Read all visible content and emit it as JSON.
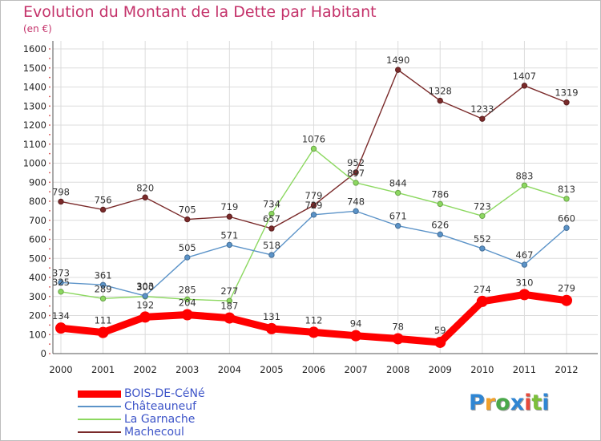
{
  "title": "Evolution du Montant de la Dette par Habitant",
  "subtitle": "(en €)",
  "logo": {
    "text": "Proxiti",
    "colors": [
      "#2f86d3",
      "#f2a12a",
      "#4aa84a",
      "#2f86d3",
      "#e64a3c",
      "#7bbf3a",
      "#2f86d3"
    ]
  },
  "chart_data": {
    "type": "line",
    "x": [
      "2000",
      "2001",
      "2002",
      "2003",
      "2004",
      "2005",
      "2006",
      "2007",
      "2008",
      "2009",
      "2010",
      "2011",
      "2012"
    ],
    "ylim": [
      0,
      1600
    ],
    "yticks": [
      0,
      100,
      200,
      300,
      400,
      500,
      600,
      700,
      800,
      900,
      1000,
      1100,
      1200,
      1300,
      1400,
      1500,
      1600
    ],
    "grid": true,
    "legend_position": "bottom-left",
    "series": [
      {
        "name": "BOIS-DE-CéNé",
        "color": "#ff0000",
        "values": [
          134,
          111,
          192,
          204,
          187,
          131,
          112,
          94,
          78,
          59,
          274,
          310,
          279
        ]
      },
      {
        "name": "Châteauneuf",
        "color": "#5b93c8",
        "values": [
          373,
          361,
          303,
          505,
          571,
          518,
          729,
          748,
          671,
          626,
          552,
          467,
          660
        ]
      },
      {
        "name": "La Garnache",
        "color": "#8cd860",
        "values": [
          325,
          289,
          300,
          285,
          277,
          734,
          1076,
          897,
          844,
          786,
          723,
          883,
          813
        ]
      },
      {
        "name": "Machecoul",
        "color": "#7a2a2a",
        "values": [
          798,
          756,
          820,
          705,
          719,
          657,
          779,
          952,
          1490,
          1328,
          1233,
          1407,
          1319
        ]
      }
    ]
  }
}
